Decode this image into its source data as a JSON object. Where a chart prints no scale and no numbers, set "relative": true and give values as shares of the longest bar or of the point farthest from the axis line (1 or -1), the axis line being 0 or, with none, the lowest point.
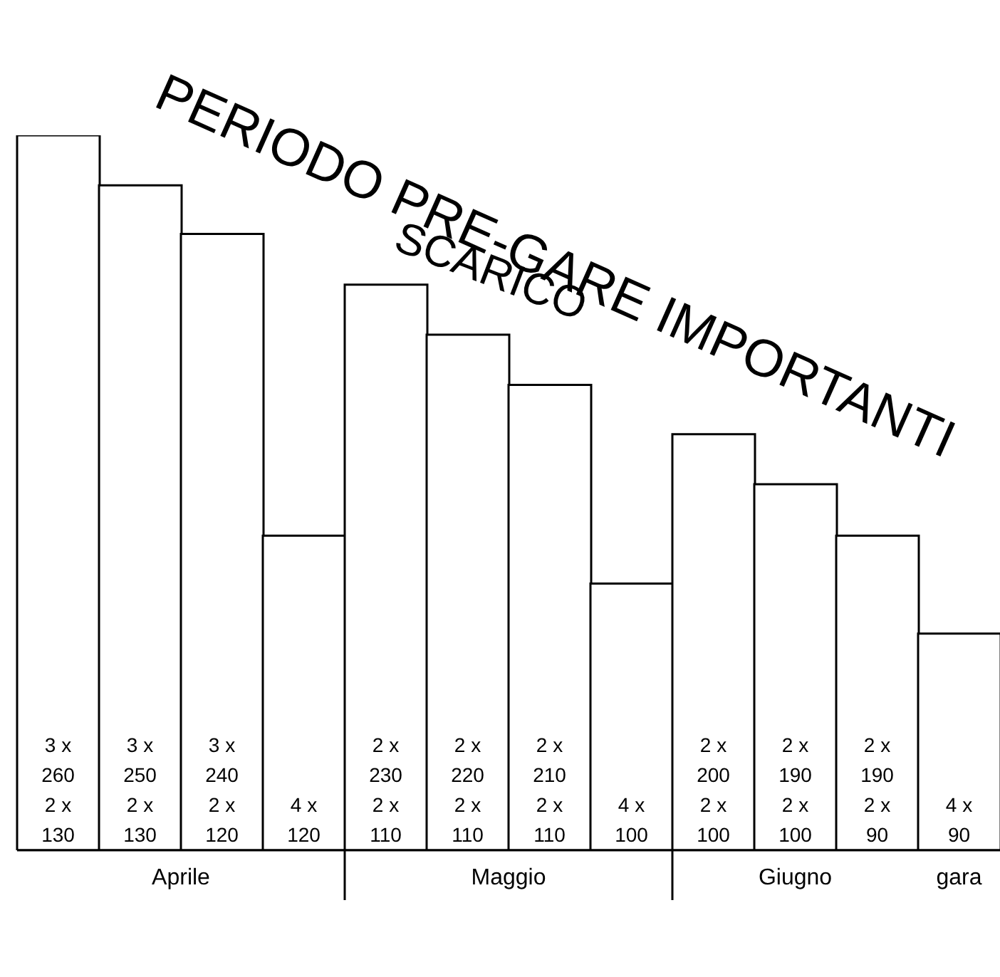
{
  "chart_data": {
    "type": "bar",
    "title": "PERIODO PRE-GARE IMPORTANTI",
    "annotations": [
      "SCARICO",
      "Aprile",
      "Maggio",
      "Giugno",
      "gara"
    ],
    "relative": true,
    "color": "#ffffff",
    "categories": [
      "3 x\n260\n2 x\n130",
      "3 x\n250\n2 x\n130",
      "3 x\n240\n2 x\n120",
      "4 x\n120",
      "2 x\n230\n2 x\n110",
      "2 x\n220\n2 x\n110",
      "2 x\n210\n2 x\n110",
      "4 x\n100",
      "2 x\n200\n2 x\n100",
      "2 x\n190\n2 x\n100",
      "2 x\n190\n2 x\n90",
      "4 x\n90"
    ],
    "values": [
      1,
      0.93,
      0.862,
      0.44,
      0.791,
      0.721,
      0.651,
      0.373,
      0.582,
      0.512,
      0.44,
      0.303
    ]
  }
}
